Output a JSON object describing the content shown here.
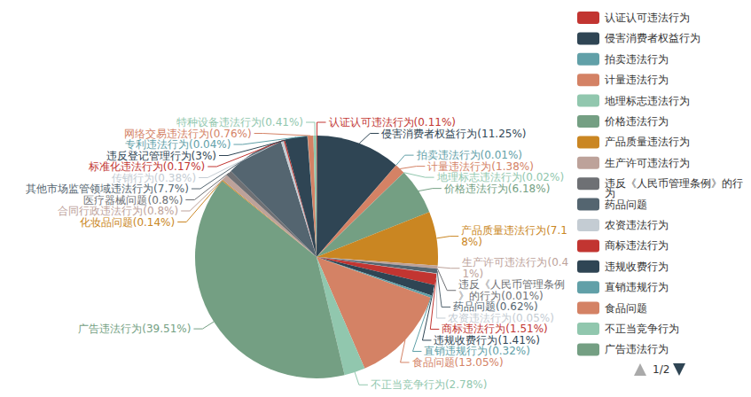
{
  "chart_data": {
    "type": "pie",
    "categories": [
      "认证认可违法行为",
      "侵害消费者权益行为",
      "拍卖违法行为",
      "计量违法行为",
      "地理标志违法行为",
      "价格违法行为",
      "产品质量违法行为",
      "生产许可违法行为",
      "违反《人民币管理条例》的行为",
      "药品问题",
      "农资违法行为",
      "商标违法行为",
      "违规收费行为",
      "直销违规行为",
      "食品问题",
      "不正当竞争行为",
      "广告违法行为",
      "化妆品问题",
      "合同行政违法行为",
      "医疗器械问题",
      "其他市场监管领域违法行为",
      "传销行为",
      "标准化违法行为",
      "违反登记管理行为",
      "专利违法行为",
      "网络交易违法行为",
      "特种设备违法行为"
    ],
    "values": [
      0.11,
      11.25,
      0.01,
      1.38,
      0.02,
      6.18,
      7.18,
      0.41,
      0.01,
      0.62,
      0.05,
      1.51,
      1.41,
      0.32,
      13.05,
      2.78,
      39.51,
      0.14,
      0.8,
      0.8,
      7.7,
      0.38,
      0.17,
      3,
      0.04,
      0.76,
      0.41
    ],
    "value_labels": [
      "认证认可违法行为(0.11%)",
      "侵害消费者权益行为(11.25%)",
      "拍卖违法行为(0.01%)",
      "计量违法行为(1.38%)",
      "地理标志违法行为(0.02%)",
      "价格违法行为(6.18%)",
      "产品质量违法行为(7.18%)",
      "生产许可违法行为(0.41%)",
      "违反《人民币管理条例》的行为(0.01%)",
      "药品问题(0.62%)",
      "农资违法行为(0.05%)",
      "商标违法行为(1.51%)",
      "违规收费行为(1.41%)",
      "直销违规行为(0.32%)",
      "食品问题(13.05%)",
      "不正当竞争行为(2.78%)",
      "广告违法行为(39.51%)",
      "化妆品问题(0.14%)",
      "合同行政违法行为(0.8%)",
      "医疗器械问题(0.8%)",
      "其他市场监管领域违法行为(7.7%)",
      "传销行为(0.38%)",
      "标准化违法行为(0.17%)",
      "违反登记管理行为(3%)",
      "专利违法行为(0.04%)",
      "网络交易违法行为(0.76%)",
      "特种设备违法行为(0.41%)"
    ],
    "colors": [
      "#c23531",
      "#2f4554",
      "#61a0a8",
      "#d48265",
      "#91c7ae",
      "#749f83",
      "#ca8622",
      "#bda29a",
      "#6e7074",
      "#546570",
      "#c4ccd3",
      "#c23531",
      "#2f4554",
      "#61a0a8",
      "#d48265",
      "#91c7ae",
      "#749f83",
      "#ca8622",
      "#bda29a",
      "#6e7074",
      "#546570",
      "#c4ccd3",
      "#c23531",
      "#2f4554",
      "#61a0a8",
      "#d48265",
      "#91c7ae"
    ],
    "data_labels": true,
    "legend": "right",
    "legend_page_label": "1/2"
  }
}
